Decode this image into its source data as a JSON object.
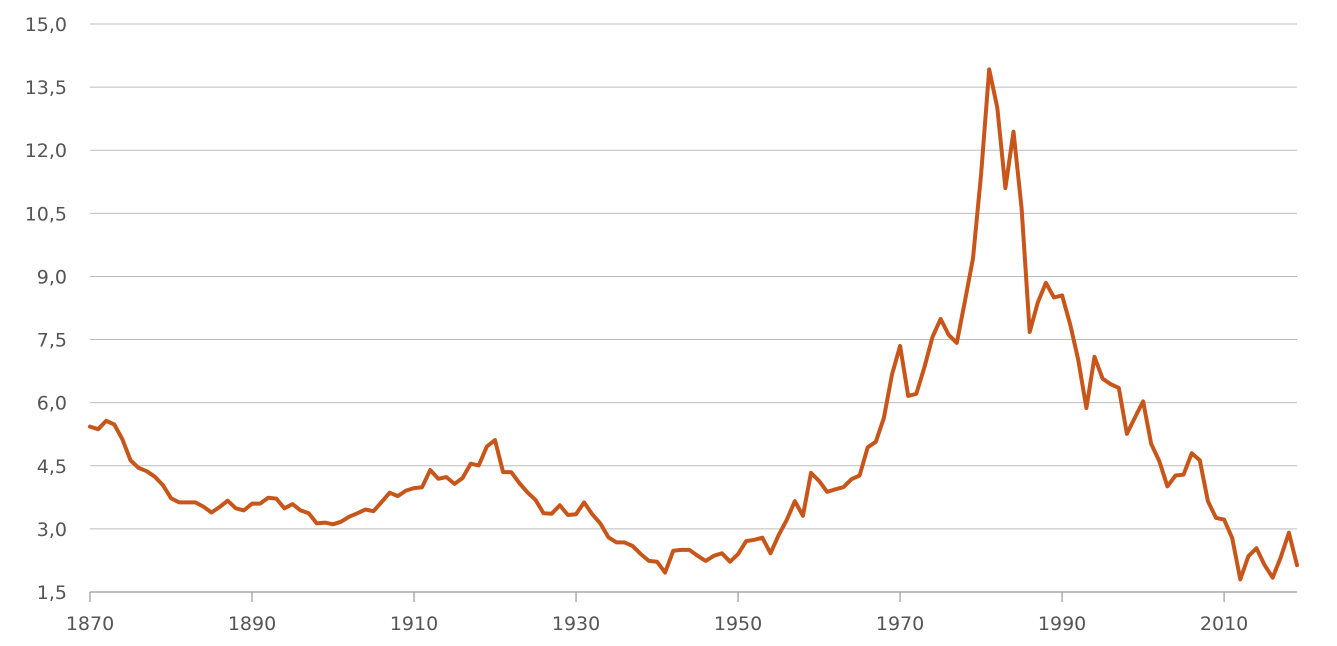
{
  "chart_data": {
    "type": "line",
    "title": "",
    "xlabel": "",
    "ylabel": "",
    "xlim": [
      1870,
      2019
    ],
    "ylim": [
      1.5,
      15.0
    ],
    "x_ticks": [
      1870,
      1890,
      1910,
      1930,
      1950,
      1970,
      1990,
      2010
    ],
    "x_tick_labels": [
      "1870",
      "1890",
      "1910",
      "1930",
      "1950",
      "1970",
      "1990",
      "2010"
    ],
    "y_ticks": [
      1.5,
      3.0,
      4.5,
      6.0,
      7.5,
      9.0,
      10.5,
      12.0,
      13.5,
      15.0
    ],
    "y_tick_labels": [
      "1,5",
      "3,0",
      "4,5",
      "6,0",
      "7,5",
      "9,0",
      "10,5",
      "12,0",
      "13,5",
      "15,0"
    ],
    "grid": true,
    "colors": {
      "series": "#c8561a",
      "grid": "#bdbdbd",
      "axis": "#9a9a9a",
      "text": "#555555"
    },
    "series": [
      {
        "x": [
          1870,
          1871,
          1872,
          1873,
          1874,
          1875,
          1876,
          1877,
          1878,
          1879,
          1880,
          1881,
          1882,
          1883,
          1884,
          1885,
          1886,
          1887,
          1888,
          1889,
          1890,
          1891,
          1892,
          1893,
          1894,
          1895,
          1896,
          1897,
          1898,
          1899,
          1900,
          1901,
          1902,
          1903,
          1904,
          1905,
          1906,
          1907,
          1908,
          1909,
          1910,
          1911,
          1912,
          1913,
          1914,
          1915,
          1916,
          1917,
          1918,
          1919,
          1920,
          1921,
          1922,
          1923,
          1924,
          1925,
          1926,
          1927,
          1928,
          1929,
          1930,
          1931,
          1932,
          1933,
          1934,
          1935,
          1936,
          1937,
          1938,
          1939,
          1940,
          1941,
          1942,
          1943,
          1944,
          1945,
          1946,
          1947,
          1948,
          1949,
          1950,
          1951,
          1952,
          1953,
          1954,
          1955,
          1956,
          1957,
          1958,
          1959,
          1960,
          1961,
          1962,
          1963,
          1964,
          1965,
          1966,
          1967,
          1968,
          1969,
          1970,
          1971,
          1972,
          1973,
          1974,
          1975,
          1976,
          1977,
          1978,
          1979,
          1980,
          1981,
          1982,
          1983,
          1984,
          1985,
          1986,
          1987,
          1988,
          1989,
          1990,
          1991,
          1992,
          1993,
          1994,
          1995,
          1996,
          1997,
          1998,
          1999,
          2000,
          2001,
          2002,
          2003,
          2004,
          2005,
          2006,
          2007,
          2008,
          2009,
          2010,
          2011,
          2012,
          2013,
          2014,
          2015,
          2016,
          2017,
          2018,
          2019
        ],
        "y": [
          5.43,
          5.37,
          5.57,
          5.48,
          5.13,
          4.63,
          4.45,
          4.37,
          4.24,
          4.04,
          3.73,
          3.63,
          3.63,
          3.63,
          3.53,
          3.39,
          3.52,
          3.67,
          3.49,
          3.44,
          3.6,
          3.6,
          3.74,
          3.72,
          3.49,
          3.59,
          3.44,
          3.37,
          3.13,
          3.15,
          3.11,
          3.17,
          3.29,
          3.37,
          3.46,
          3.42,
          3.64,
          3.86,
          3.78,
          3.91,
          3.97,
          3.99,
          4.4,
          4.19,
          4.23,
          4.07,
          4.21,
          4.55,
          4.51,
          4.96,
          5.11,
          4.35,
          4.35,
          4.09,
          3.87,
          3.69,
          3.37,
          3.36,
          3.56,
          3.33,
          3.35,
          3.63,
          3.35,
          3.13,
          2.8,
          2.68,
          2.68,
          2.59,
          2.4,
          2.24,
          2.22,
          1.96,
          2.48,
          2.5,
          2.5,
          2.36,
          2.24,
          2.36,
          2.42,
          2.22,
          2.4,
          2.71,
          2.74,
          2.79,
          2.42,
          2.85,
          3.21,
          3.66,
          3.31,
          4.33,
          4.14,
          3.88,
          3.94,
          3.99,
          4.18,
          4.27,
          4.94,
          5.07,
          5.64,
          6.67,
          7.35,
          6.16,
          6.21,
          6.84,
          7.56,
          7.99,
          7.61,
          7.42,
          8.41,
          9.43,
          11.43,
          13.92,
          13.01,
          11.1,
          12.44,
          10.62,
          7.68,
          8.38,
          8.85,
          8.5,
          8.55,
          7.86,
          7.01,
          5.87,
          7.09,
          6.57,
          6.44,
          6.35,
          5.26,
          5.65,
          6.03,
          5.02,
          4.61,
          4.01,
          4.27,
          4.29,
          4.8,
          4.63,
          3.66,
          3.26,
          3.22,
          2.78,
          1.8,
          2.35,
          2.54,
          2.14,
          1.84,
          2.33,
          2.91,
          2.14
        ]
      }
    ]
  }
}
